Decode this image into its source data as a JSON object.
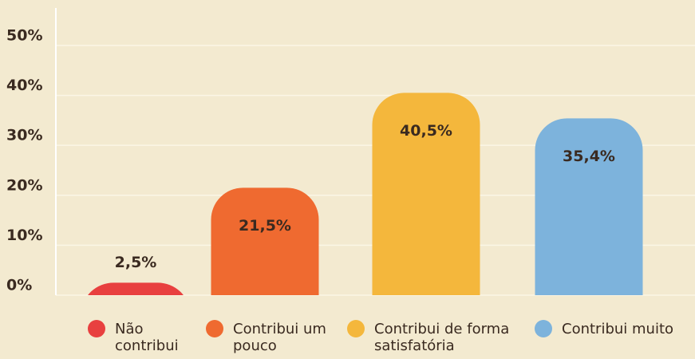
{
  "chart_data": {
    "type": "bar",
    "categories": [
      "Não contribui",
      "Contribui um pouco",
      "Contribui de forma satisfatória",
      "Contribui muito"
    ],
    "values": [
      2.5,
      21.5,
      40.5,
      35.4
    ],
    "value_labels": [
      "2,5%",
      "21,5%",
      "40,5%",
      "35,4%"
    ],
    "colors": [
      "#e8403f",
      "#ef6a30",
      "#f4b73c",
      "#7db3dc"
    ],
    "ylim": [
      0,
      57.5
    ],
    "yticks": [
      {
        "value": 0,
        "label": "0%"
      },
      {
        "value": 10,
        "label": "10%"
      },
      {
        "value": 20,
        "label": "20%"
      },
      {
        "value": 30,
        "label": "30%"
      },
      {
        "value": 40,
        "label": "40%"
      },
      {
        "value": 50,
        "label": "50%"
      }
    ],
    "grid": true
  }
}
